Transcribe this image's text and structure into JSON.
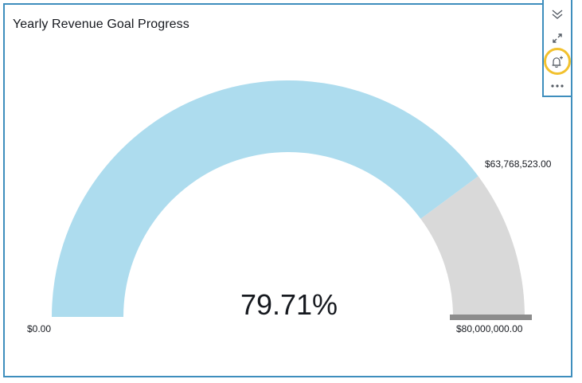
{
  "visual": {
    "title": "Yearly Revenue Goal Progress"
  },
  "toolbar": {
    "buttons": [
      {
        "name": "collapse",
        "icon": "double-chevron-down-icon"
      },
      {
        "name": "expand",
        "icon": "expand-arrows-icon"
      },
      {
        "name": "add-alert",
        "icon": "bell-plus-icon"
      },
      {
        "name": "more-options",
        "icon": "ellipsis-icon"
      }
    ],
    "highlight_color": "#f2c12e"
  },
  "gauge": {
    "percent_label": "79.71%",
    "min_label": "$0.00",
    "max_label": "$80,000,000.00",
    "value_label": "$63,768,523.00",
    "colors": {
      "fill": "#addcee",
      "remaining": "#d9d9d9",
      "target_marker": "#8c8c8c",
      "border": "#3e8ebd"
    }
  },
  "chart_data": {
    "type": "gauge",
    "title": "Yearly Revenue Goal Progress",
    "value": 63768523.0,
    "min": 0,
    "max": 80000000.0,
    "percent": 79.71,
    "value_label": "$63,768,523.00",
    "min_label": "$0.00",
    "max_label": "$80,000,000.00"
  }
}
